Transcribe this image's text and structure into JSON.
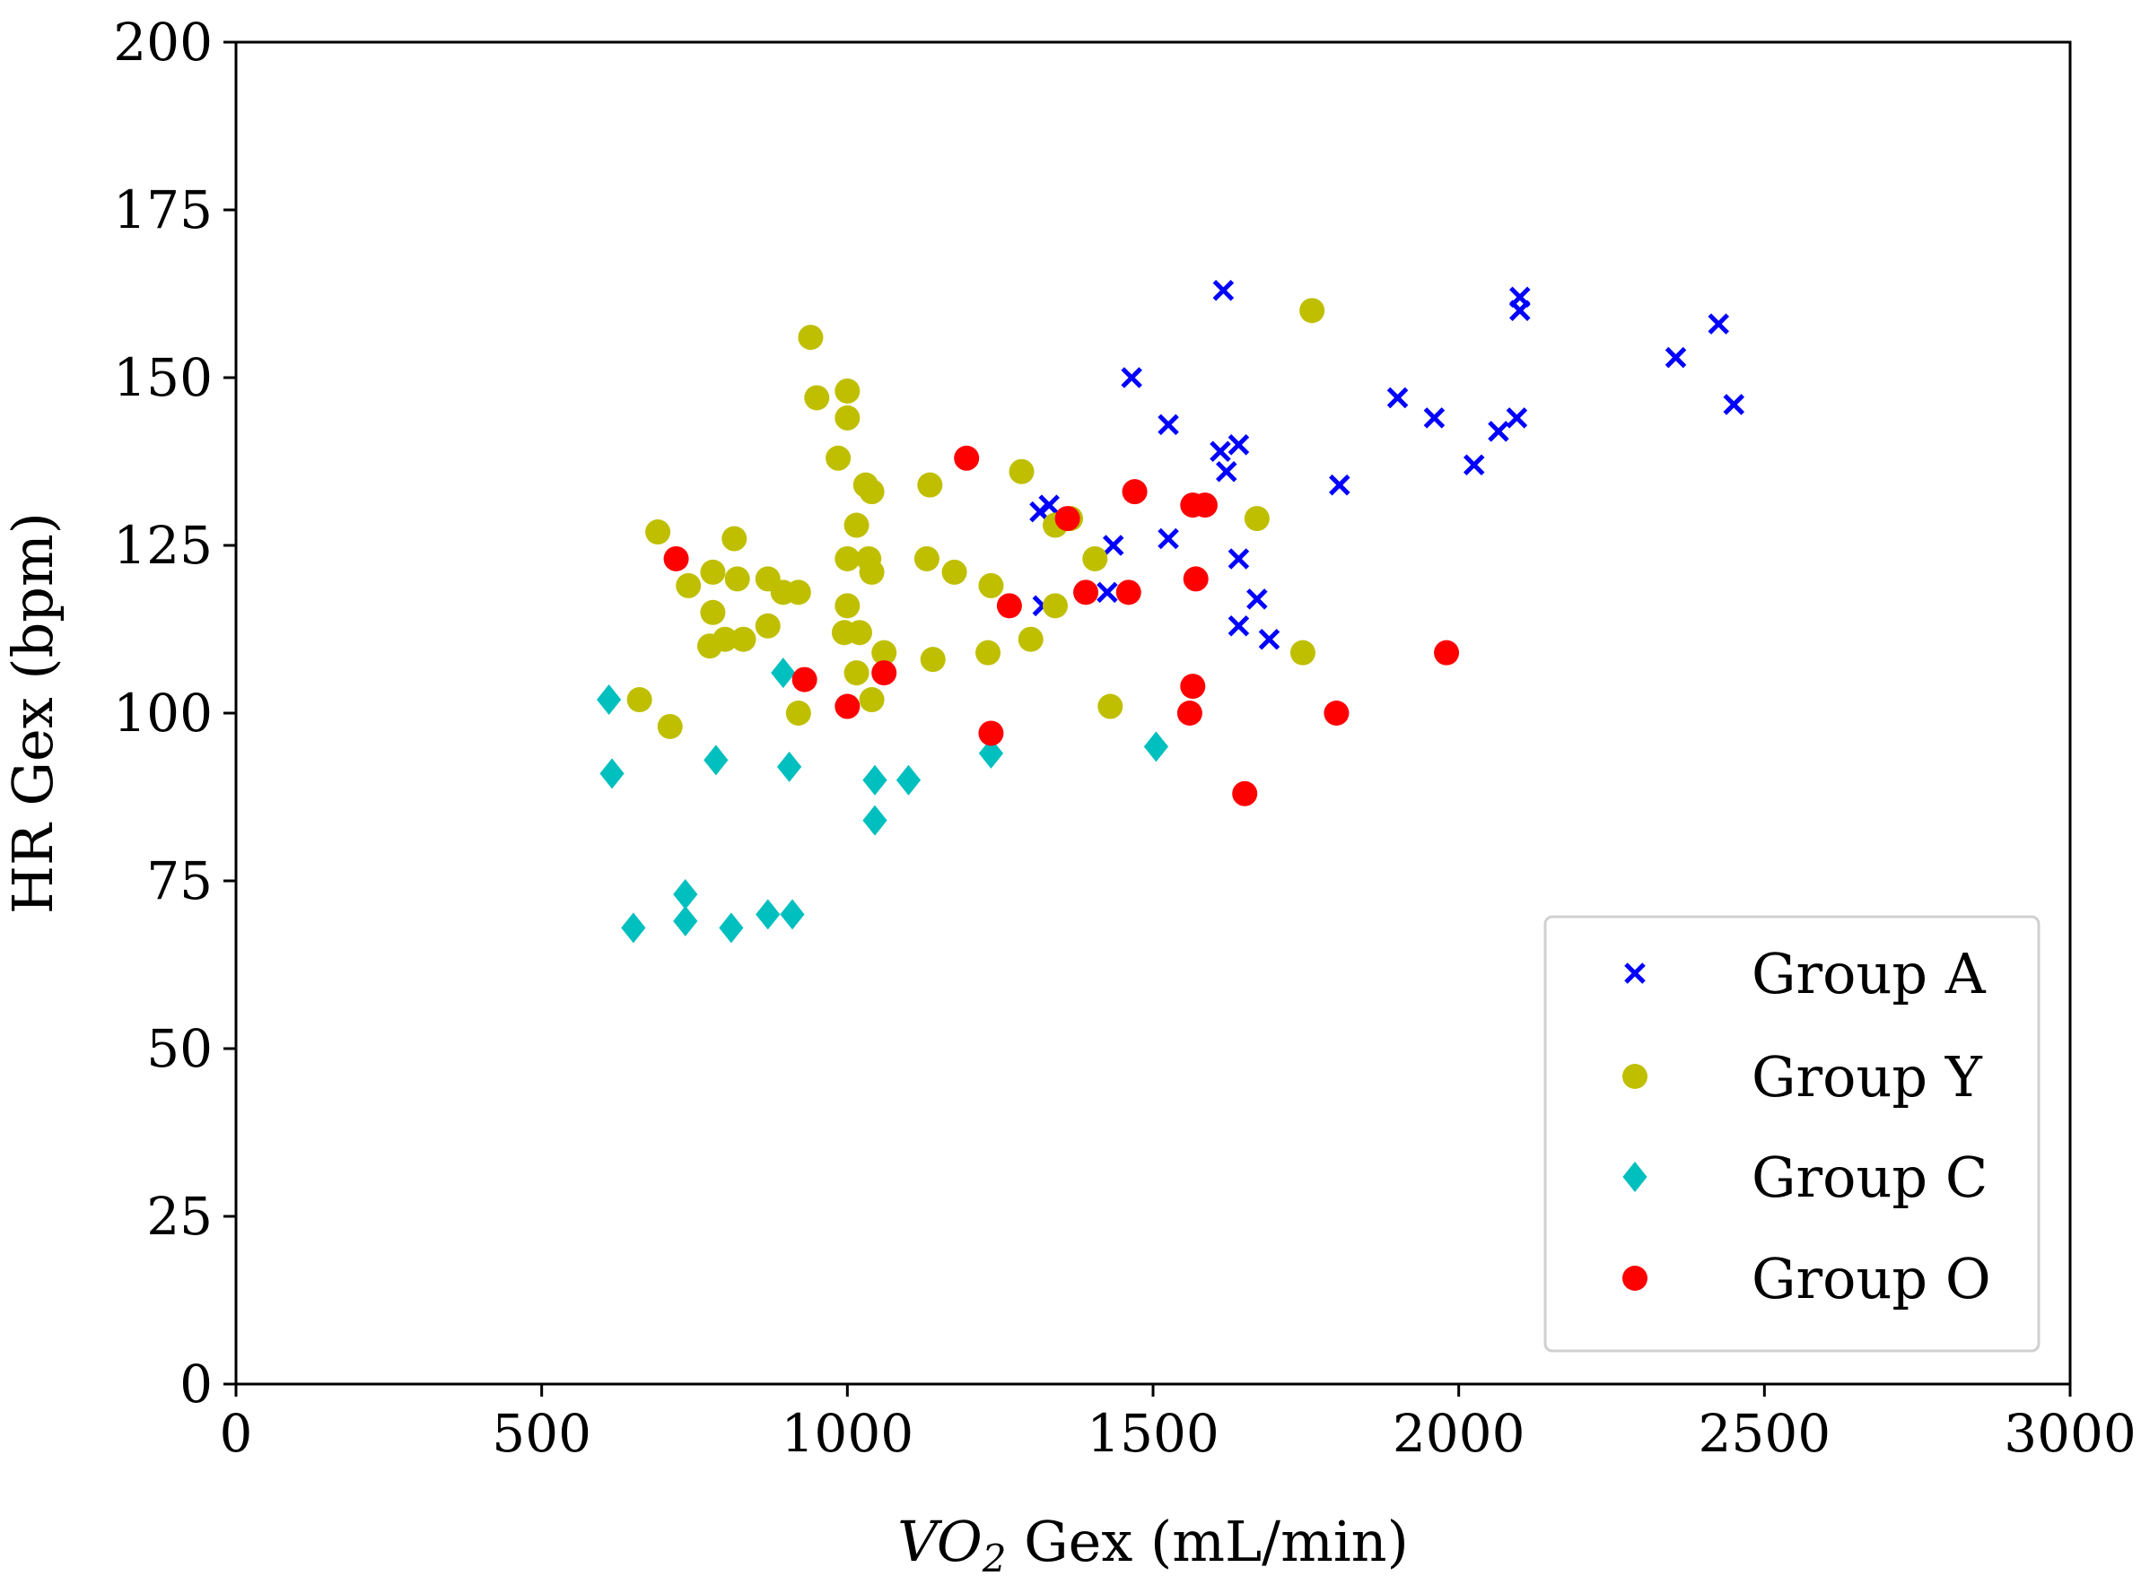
{
  "chart_data": {
    "type": "scatter",
    "title": "",
    "xlabel_italic": "VO",
    "xlabel_sub": "2",
    "xlabel_rest": " Gex (mL/min)",
    "ylabel": "HR Gex (bpm)",
    "xlim": [
      0,
      3000
    ],
    "ylim": [
      0,
      200
    ],
    "xticks": [
      0,
      500,
      1000,
      1500,
      2000,
      2500,
      3000
    ],
    "yticks": [
      0,
      25,
      50,
      75,
      100,
      125,
      150,
      175,
      200
    ],
    "grid": false,
    "legend_position": "bottom-right",
    "series": [
      {
        "name": "Group A",
        "marker": "x",
        "color": "#0000ff",
        "points": [
          [
            1615,
            163
          ],
          [
            2100,
            162
          ],
          [
            2100,
            160
          ],
          [
            2425,
            158
          ],
          [
            2355,
            153
          ],
          [
            1465,
            150
          ],
          [
            1900,
            147
          ],
          [
            2450,
            146
          ],
          [
            1960,
            144
          ],
          [
            2095,
            144
          ],
          [
            1525,
            143
          ],
          [
            2065,
            142
          ],
          [
            1640,
            140
          ],
          [
            1610,
            139
          ],
          [
            1620,
            136
          ],
          [
            2025,
            137
          ],
          [
            1805,
            134
          ],
          [
            1315,
            130
          ],
          [
            1330,
            131
          ],
          [
            1525,
            126
          ],
          [
            1435,
            125
          ],
          [
            1640,
            123
          ],
          [
            1670,
            117
          ],
          [
            1320,
            116
          ],
          [
            1425,
            118
          ],
          [
            1640,
            113
          ],
          [
            1690,
            111
          ]
        ]
      },
      {
        "name": "Group Y",
        "marker": "o",
        "color": "#bfbf00",
        "points": [
          [
            940,
            156
          ],
          [
            1760,
            160
          ],
          [
            1000,
            148
          ],
          [
            950,
            147
          ],
          [
            1000,
            144
          ],
          [
            985,
            138
          ],
          [
            1285,
            136
          ],
          [
            1030,
            134
          ],
          [
            1040,
            133
          ],
          [
            1135,
            134
          ],
          [
            690,
            127
          ],
          [
            815,
            126
          ],
          [
            1015,
            128
          ],
          [
            1340,
            128
          ],
          [
            1365,
            129
          ],
          [
            1670,
            129
          ],
          [
            1000,
            123
          ],
          [
            1035,
            123
          ],
          [
            1130,
            123
          ],
          [
            1040,
            121
          ],
          [
            1405,
            123
          ],
          [
            1175,
            121
          ],
          [
            780,
            121
          ],
          [
            740,
            119
          ],
          [
            820,
            120
          ],
          [
            870,
            120
          ],
          [
            895,
            118
          ],
          [
            920,
            118
          ],
          [
            1235,
            119
          ],
          [
            1000,
            116
          ],
          [
            1340,
            116
          ],
          [
            780,
            115
          ],
          [
            870,
            113
          ],
          [
            995,
            112
          ],
          [
            1020,
            112
          ],
          [
            775,
            110
          ],
          [
            800,
            111
          ],
          [
            830,
            111
          ],
          [
            1300,
            111
          ],
          [
            1060,
            109
          ],
          [
            1230,
            109
          ],
          [
            1140,
            108
          ],
          [
            1745,
            109
          ],
          [
            1015,
            106
          ],
          [
            660,
            102
          ],
          [
            1040,
            102
          ],
          [
            1430,
            101
          ],
          [
            920,
            100
          ],
          [
            710,
            98
          ]
        ]
      },
      {
        "name": "Group C",
        "marker": "D",
        "color": "#00bfbf",
        "points": [
          [
            610,
            102
          ],
          [
            895,
            106
          ],
          [
            615,
            91
          ],
          [
            785,
            93
          ],
          [
            905,
            92
          ],
          [
            1235,
            94
          ],
          [
            1505,
            95
          ],
          [
            1045,
            90
          ],
          [
            1100,
            90
          ],
          [
            1045,
            84
          ],
          [
            735,
            73
          ],
          [
            650,
            68
          ],
          [
            735,
            69
          ],
          [
            810,
            68
          ],
          [
            870,
            70
          ],
          [
            910,
            70
          ]
        ]
      },
      {
        "name": "Group O",
        "marker": "o",
        "color": "#ff0000",
        "points": [
          [
            1195,
            138
          ],
          [
            1470,
            133
          ],
          [
            1360,
            129
          ],
          [
            1565,
            131
          ],
          [
            1585,
            131
          ],
          [
            720,
            123
          ],
          [
            1390,
            118
          ],
          [
            1460,
            118
          ],
          [
            1570,
            120
          ],
          [
            1265,
            116
          ],
          [
            930,
            105
          ],
          [
            1060,
            106
          ],
          [
            1980,
            109
          ],
          [
            1565,
            104
          ],
          [
            1000,
            101
          ],
          [
            1560,
            100
          ],
          [
            1800,
            100
          ],
          [
            1235,
            97
          ],
          [
            1650,
            88
          ]
        ]
      }
    ]
  }
}
